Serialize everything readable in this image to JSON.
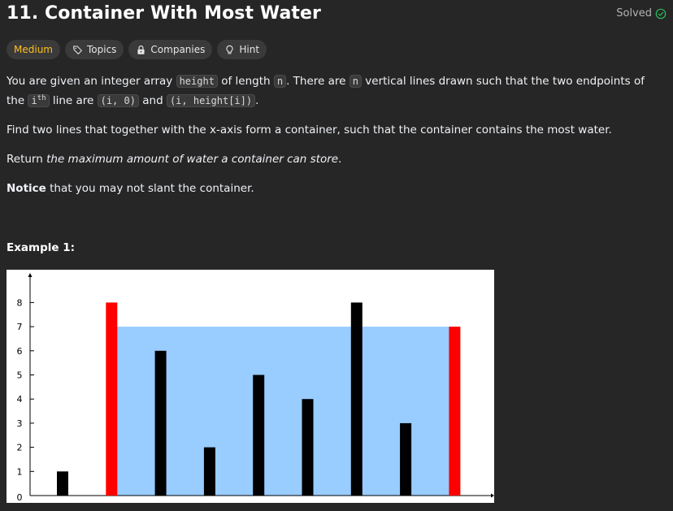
{
  "header": {
    "title": "11. Container With Most Water",
    "solved_label": "Solved"
  },
  "tags": {
    "difficulty": "Medium",
    "topics": "Topics",
    "companies": "Companies",
    "hint": "Hint"
  },
  "description": {
    "p1_a": "You are given an integer array ",
    "p1_code_height": "height",
    "p1_b": " of length ",
    "p1_code_n": "n",
    "p1_c": ". There are ",
    "p1_code_n2": "n",
    "p1_d": " vertical lines drawn such that the two endpoints of the ",
    "p1_code_i": "i",
    "p1_sup_th": "th",
    "p1_e": " line are ",
    "p1_code_pt1": "(i, 0)",
    "p1_f": " and ",
    "p1_code_pt2": "(i, height[i])",
    "p1_g": ".",
    "p2": "Find two lines that together with the x-axis form a container, such that the container contains the most water.",
    "p3_a": "Return ",
    "p3_em": "the maximum amount of water a container can store",
    "p3_b": ".",
    "p4_strong": "Notice",
    "p4_rest": " that you may not slant the container."
  },
  "example": {
    "title": "Example 1:"
  },
  "colors": {
    "accent_medium": "#ffc01e",
    "solved_check": "#2cbb5d",
    "water": "#99ccff",
    "highlight_bar": "#ff0000",
    "bar": "#000000"
  },
  "chart_data": {
    "type": "bar",
    "x": [
      0,
      1,
      2,
      3,
      4,
      5,
      6,
      7,
      8
    ],
    "values": [
      1,
      8,
      6,
      2,
      5,
      4,
      8,
      3,
      7
    ],
    "highlighted_indices": [
      1,
      8
    ],
    "water_level": 7,
    "water_span": [
      1,
      8
    ],
    "y_ticks": [
      0,
      1,
      2,
      3,
      4,
      5,
      6,
      7,
      8
    ],
    "ylim": [
      0,
      8
    ],
    "title": "",
    "xlabel": "",
    "ylabel": ""
  }
}
